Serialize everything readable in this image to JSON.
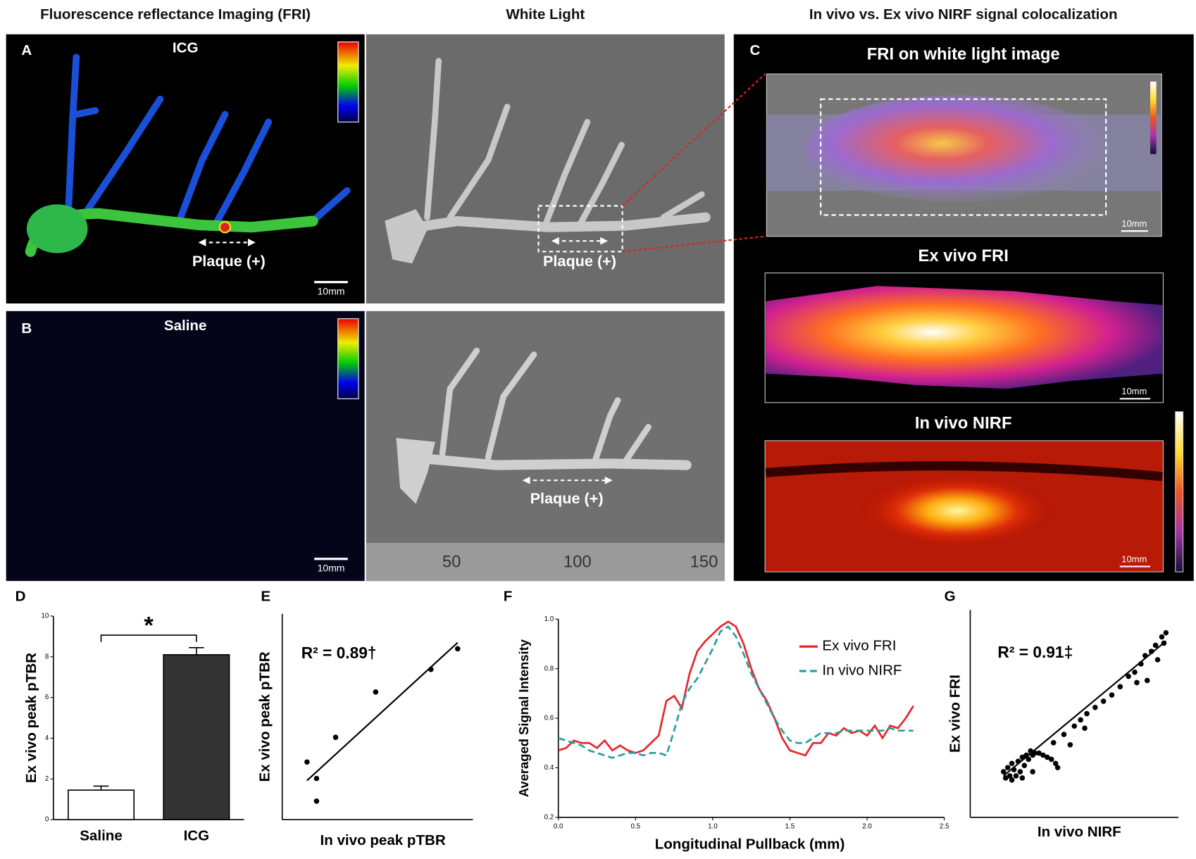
{
  "figure": {
    "headers": [
      "Fluorescence reflectance Imaging (FRI)",
      "White Light",
      "In vivo vs. Ex vivo NIRF signal colocalization"
    ],
    "panel_a": {
      "label": "A",
      "title": "ICG",
      "annotation": "Plaque (+)",
      "scale_bar": "10mm"
    },
    "white_light_a": {
      "annotation": "Plaque (+)"
    },
    "panel_b": {
      "label": "B",
      "title": "Saline",
      "scale_bar": "10mm"
    },
    "white_light_b": {
      "annotation": "Plaque (+)",
      "ruler": [
        "50",
        "100",
        "150"
      ]
    },
    "panel_c": {
      "label": "C",
      "images": [
        {
          "title": "FRI on white light image",
          "scale_bar": "10mm"
        },
        {
          "title": "Ex vivo FRI",
          "scale_bar": "10mm"
        },
        {
          "title": "In vivo NIRF",
          "scale_bar": "10mm"
        }
      ]
    }
  },
  "chart_data": [
    {
      "type": "bar",
      "label": "D",
      "categories": [
        "Saline",
        "ICG"
      ],
      "values": [
        1.45,
        8.1
      ],
      "errors": [
        0.2,
        0.35
      ],
      "colors": [
        "#ffffff",
        "#333333"
      ],
      "ylabel": "Ex vivo peak pTBR",
      "ylim": [
        0,
        10
      ],
      "yticks": [
        0,
        2,
        4,
        6,
        8,
        10
      ],
      "annotation": "*"
    },
    {
      "type": "scatter",
      "label": "E",
      "xlabel": "In vivo peak pTBR",
      "ylabel": "Ex vivo peak pTBR",
      "annotation": "R² = 0.89†",
      "xlim": [
        0,
        10
      ],
      "ylim": [
        0,
        10
      ],
      "color": "#000000",
      "x": [
        1.3,
        1.8,
        1.8,
        2.8,
        4.9,
        7.8,
        9.2
      ],
      "y": [
        2.8,
        2.0,
        0.9,
        4.0,
        6.2,
        7.3,
        8.3
      ],
      "fit": {
        "x": [
          1.3,
          9.2
        ],
        "y": [
          1.9,
          8.6
        ]
      }
    },
    {
      "type": "line",
      "label": "F",
      "xlabel": "Longitudinal Pullback (mm)",
      "ylabel": "Averaged Signal Intensity",
      "xlim": [
        0,
        2.5
      ],
      "ylim": [
        0.2,
        1.0
      ],
      "xticks": [
        {
          "value": 0,
          "label": "0.0"
        },
        0.5,
        {
          "value": 1,
          "label": "1.0"
        },
        1.5,
        {
          "value": 2,
          "label": "2.0"
        },
        2.5
      ],
      "yticks": [
        0.2,
        0.4,
        0.6,
        0.8,
        {
          "value": 1,
          "label": "1.0"
        }
      ],
      "x": [
        0,
        0.05,
        0.1,
        0.15,
        0.2,
        0.25,
        0.3,
        0.35,
        0.4,
        0.45,
        0.5,
        0.55,
        0.6,
        0.65,
        0.7,
        0.75,
        0.8,
        0.85,
        0.9,
        0.95,
        1.0,
        1.05,
        1.1,
        1.15,
        1.2,
        1.25,
        1.3,
        1.35,
        1.4,
        1.45,
        1.5,
        1.55,
        1.6,
        1.65,
        1.7,
        1.75,
        1.8,
        1.85,
        1.9,
        1.95,
        2.0,
        2.05,
        2.1,
        2.15,
        2.2,
        2.25,
        2.3
      ],
      "series": [
        {
          "name": "Ex vivo FRI",
          "color": "#e8262a",
          "line_style": "solid",
          "values": [
            0.47,
            0.48,
            0.51,
            0.5,
            0.5,
            0.48,
            0.51,
            0.47,
            0.49,
            0.47,
            0.46,
            0.47,
            0.5,
            0.53,
            0.67,
            0.69,
            0.64,
            0.78,
            0.87,
            0.91,
            0.94,
            0.97,
            0.99,
            0.97,
            0.9,
            0.8,
            0.72,
            0.67,
            0.6,
            0.52,
            0.47,
            0.46,
            0.45,
            0.5,
            0.5,
            0.54,
            0.53,
            0.56,
            0.54,
            0.55,
            0.53,
            0.57,
            0.52,
            0.57,
            0.56,
            0.6,
            0.65
          ]
        },
        {
          "name": "In vivo NIRF",
          "color": "#2a9d9d",
          "line_style": "dashed",
          "values": [
            0.52,
            0.51,
            0.5,
            0.49,
            0.47,
            0.46,
            0.45,
            0.44,
            0.45,
            0.46,
            0.46,
            0.45,
            0.46,
            0.46,
            0.45,
            0.55,
            0.66,
            0.72,
            0.76,
            0.82,
            0.88,
            0.95,
            0.97,
            0.93,
            0.86,
            0.78,
            0.72,
            0.66,
            0.6,
            0.55,
            0.51,
            0.5,
            0.5,
            0.52,
            0.54,
            0.54,
            0.54,
            0.55,
            0.55,
            0.55,
            0.55,
            0.55,
            0.55,
            0.56,
            0.55,
            0.55,
            0.55
          ]
        }
      ]
    },
    {
      "type": "scatter",
      "label": "G",
      "xlabel": "In vivo NIRF",
      "ylabel": "Ex vivo FRI",
      "annotation": "R² = 0.91‡",
      "xlim": [
        0,
        10
      ],
      "ylim": [
        0,
        10
      ],
      "color": "#000000",
      "x": [
        1.6,
        1.7,
        1.8,
        1.9,
        2.0,
        2.0,
        2.1,
        2.2,
        2.3,
        2.4,
        2.5,
        2.6,
        2.7,
        2.8,
        2.9,
        3.0,
        3.1,
        3.3,
        3.5,
        3.7,
        3.9,
        4.1,
        4.2,
        3.0,
        2.5,
        4.0,
        4.5,
        5.0,
        5.3,
        5.6,
        6.0,
        6.4,
        6.8,
        7.2,
        7.6,
        7.9,
        8.2,
        8.4,
        8.5,
        8.7,
        8.9,
        9.0,
        9.2,
        9.3,
        9.4,
        8.0,
        5.5,
        4.8
      ],
      "y": [
        2.2,
        1.9,
        2.4,
        2.0,
        2.6,
        1.8,
        2.3,
        2.0,
        2.7,
        2.2,
        2.9,
        2.5,
        3.0,
        2.8,
        3.2,
        3.0,
        3.1,
        3.1,
        3.0,
        2.9,
        2.8,
        2.6,
        2.4,
        2.2,
        1.9,
        3.6,
        4.0,
        4.4,
        4.7,
        5.0,
        5.3,
        5.6,
        5.9,
        6.3,
        6.8,
        7.0,
        7.4,
        7.8,
        6.6,
        8.0,
        8.3,
        7.6,
        8.7,
        8.4,
        8.9,
        6.5,
        4.3,
        3.5
      ],
      "fit": {
        "x": [
          1.6,
          9.4
        ],
        "y": [
          2.0,
          8.5
        ]
      }
    }
  ]
}
